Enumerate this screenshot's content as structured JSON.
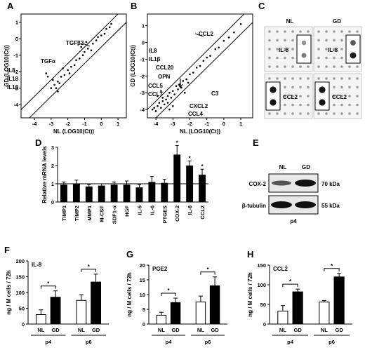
{
  "panels": {
    "A": {
      "label": "A",
      "xlabel": "NL (LOG10(Ct))",
      "ylabel": "GD (LOG10(Ct))",
      "xticks": [
        "-4",
        "-3",
        "-2",
        "-1",
        "0",
        "1"
      ],
      "yticks": [
        "1",
        "0",
        "-1",
        "-2",
        "-3",
        "-4"
      ],
      "annotations": [
        "TGFβ2",
        "TGFα",
        "IL8",
        "IL18",
        "IL1β"
      ]
    },
    "B": {
      "label": "B",
      "xlabel": "NL (LOG10(Ct))",
      "ylabel": "GD (LOG10(Ct))",
      "xticks": [
        "-4",
        "-3",
        "-2",
        "-1",
        "0",
        "1"
      ],
      "yticks": [
        "1",
        "0",
        "-1",
        "-2",
        "-3",
        "-4"
      ],
      "annotations": [
        "CCL2",
        "IL8",
        "IL1β",
        "CCL20",
        "OPN",
        "CCL5",
        "CCL7",
        "C3",
        "CXCL2",
        "CCL4"
      ]
    },
    "C": {
      "label": "C",
      "conditions": [
        "NL",
        "GD"
      ],
      "spots": [
        "IL-8",
        "IL-8",
        "CCL2",
        "CCL2"
      ]
    },
    "E": {
      "label": "E",
      "lanes": [
        "NL",
        "GD"
      ],
      "rows": [
        "COX-2",
        "β-tubulin"
      ],
      "sizes": [
        "70 kDa",
        "55 kDa"
      ],
      "passage": "p4"
    },
    "F": {
      "label": "F"
    },
    "G": {
      "label": "G"
    },
    "H": {
      "label": "H"
    }
  },
  "chart_data": [
    {
      "panel": "A",
      "type": "scatter",
      "xlabel": "NL (LOG10(Ct))",
      "ylabel": "GD (LOG10(Ct))",
      "xlim": [
        -4.8,
        1.5
      ],
      "ylim": [
        -4.8,
        1.5
      ],
      "reference_lines": [
        "y = x + 0.5",
        "y = x - 0.5"
      ],
      "points": [
        [
          -3.3,
          -2.1
        ],
        [
          -3.2,
          -2.3
        ],
        [
          -2.9,
          -2.5
        ],
        [
          -2.8,
          -2.8
        ],
        [
          -2.7,
          -3.0
        ],
        [
          -2.6,
          -3.2
        ],
        [
          -2.5,
          -2.7
        ],
        [
          -2.4,
          -2.3
        ],
        [
          -2.2,
          -2.2
        ],
        [
          -2.0,
          -1.9
        ],
        [
          -1.9,
          -2.1
        ],
        [
          -1.8,
          -1.7
        ],
        [
          -1.6,
          -1.6
        ],
        [
          -1.5,
          -1.3
        ],
        [
          -1.3,
          -1.2
        ],
        [
          -1.1,
          -1.0
        ],
        [
          -1.0,
          -0.8
        ],
        [
          -0.8,
          -0.6
        ],
        [
          -0.6,
          -0.7
        ],
        [
          -0.5,
          -0.3
        ],
        [
          -0.3,
          -0.1
        ],
        [
          -0.2,
          0.1
        ],
        [
          0.0,
          0.2
        ],
        [
          0.2,
          0.3
        ],
        [
          0.3,
          0.6
        ],
        [
          0.5,
          0.7
        ],
        [
          0.6,
          0.9
        ],
        [
          -1.2,
          -0.5
        ],
        [
          -0.9,
          -0.2
        ],
        [
          -2.3,
          -1.8
        ],
        [
          -3.0,
          -3.0
        ],
        [
          -2.6,
          -2.6
        ]
      ]
    },
    {
      "panel": "B",
      "type": "scatter",
      "xlabel": "NL (LOG10(Ct))",
      "ylabel": "GD (LOG10(Ct))",
      "xlim": [
        -4.5,
        1.7
      ],
      "ylim": [
        -4.5,
        1.7
      ],
      "reference_lines": [
        "y = x + 0.5",
        "y = x - 0.5"
      ],
      "points": [
        [
          -4.2,
          -4.0
        ],
        [
          -4.1,
          -3.9
        ],
        [
          -4.0,
          -4.1
        ],
        [
          -3.9,
          -3.8
        ],
        [
          -3.8,
          -3.6
        ],
        [
          -3.7,
          -3.9
        ],
        [
          -3.6,
          -3.5
        ],
        [
          -3.6,
          -3.3
        ],
        [
          -3.5,
          -3.7
        ],
        [
          -3.4,
          -3.4
        ],
        [
          -3.3,
          -3.2
        ],
        [
          -3.3,
          -3.6
        ],
        [
          -3.2,
          -3.0
        ],
        [
          -3.1,
          -3.3
        ],
        [
          -3.0,
          -2.9
        ],
        [
          -2.9,
          -3.1
        ],
        [
          -2.8,
          -2.6
        ],
        [
          -2.7,
          -2.8
        ],
        [
          -2.6,
          -2.5
        ],
        [
          -2.5,
          -2.7
        ],
        [
          -2.4,
          -2.3
        ],
        [
          -2.2,
          -2.2
        ],
        [
          -2.1,
          -2.4
        ],
        [
          -2.0,
          -1.9
        ],
        [
          -1.8,
          -1.8
        ],
        [
          -1.6,
          -1.5
        ],
        [
          -1.4,
          -1.4
        ],
        [
          -1.2,
          -1.1
        ],
        [
          -1.0,
          -0.9
        ],
        [
          -0.8,
          -0.8
        ],
        [
          -0.5,
          -0.4
        ],
        [
          -0.3,
          -0.3
        ],
        [
          0.0,
          0.1
        ],
        [
          0.3,
          0.3
        ],
        [
          0.6,
          0.6
        ],
        [
          1.0,
          1.1
        ],
        [
          -3.9,
          -3.2
        ],
        [
          -3.7,
          -2.9
        ],
        [
          -3.2,
          -4.0
        ],
        [
          -3.0,
          -3.8
        ],
        [
          -2.3,
          -3.0
        ]
      ]
    },
    {
      "panel": "D",
      "type": "bar",
      "ylabel": "Relative mRNA levels",
      "ylim": [
        0,
        3
      ],
      "yticks": [
        0,
        1,
        2,
        3
      ],
      "categories": [
        "TIMP1",
        "TIMP2",
        "MMP1",
        "M-CSF",
        "SDF1-α",
        "HGF",
        "IL-5",
        "IL-6",
        "PTGES",
        "COX-2",
        "IL-8",
        "CCL2"
      ],
      "values": [
        0.95,
        1.0,
        0.85,
        0.9,
        0.95,
        0.95,
        0.8,
        1.1,
        1.05,
        2.6,
        2.0,
        1.5
      ],
      "errors": [
        0.15,
        0.2,
        0.1,
        0.1,
        0.15,
        0.2,
        0.15,
        0.3,
        0.2,
        0.5,
        0.25,
        0.3
      ],
      "significance": [
        "",
        "",
        "",
        "",
        "",
        "",
        "",
        "",
        "",
        "*",
        "*",
        "*"
      ],
      "reference_line": 1
    },
    {
      "panel": "F",
      "type": "bar",
      "title": "IL-8",
      "ylabel": "ng / M cells / 72h",
      "ylim": [
        0,
        200
      ],
      "yticks": [
        0,
        50,
        100,
        150,
        200
      ],
      "groups": [
        "p4",
        "p6"
      ],
      "categories": [
        "NL",
        "GD"
      ],
      "series": [
        {
          "name": "NL",
          "values": [
            30,
            75
          ],
          "errors": [
            15,
            18
          ]
        },
        {
          "name": "GD",
          "values": [
            85,
            133
          ],
          "errors": [
            20,
            25
          ]
        }
      ],
      "significance": [
        "*",
        "*"
      ]
    },
    {
      "panel": "G",
      "type": "bar",
      "title": "PGE2",
      "ylabel": "ng / M cells / 72h",
      "ylim": [
        0,
        20
      ],
      "yticks": [
        0,
        5,
        10,
        15,
        20
      ],
      "groups": [
        "p4",
        "p6"
      ],
      "categories": [
        "NL",
        "GD"
      ],
      "series": [
        {
          "name": "NL",
          "values": [
            3,
            7.5
          ],
          "errors": [
            1,
            2
          ]
        },
        {
          "name": "GD",
          "values": [
            7.3,
            13
          ],
          "errors": [
            1.5,
            3
          ]
        }
      ],
      "significance": [
        "*",
        "*"
      ]
    },
    {
      "panel": "H",
      "type": "bar",
      "title": "CCL2",
      "ylabel": "ng / M cells / 72h",
      "ylim": [
        0,
        150
      ],
      "yticks": [
        0,
        50,
        100,
        150
      ],
      "groups": [
        "p4",
        "p6"
      ],
      "categories": [
        "NL",
        "GD"
      ],
      "series": [
        {
          "name": "NL",
          "values": [
            33,
            56
          ],
          "errors": [
            14,
            4
          ]
        },
        {
          "name": "GD",
          "values": [
            82,
            120
          ],
          "errors": [
            7,
            9
          ]
        }
      ],
      "significance": [
        "*",
        "*"
      ]
    }
  ]
}
